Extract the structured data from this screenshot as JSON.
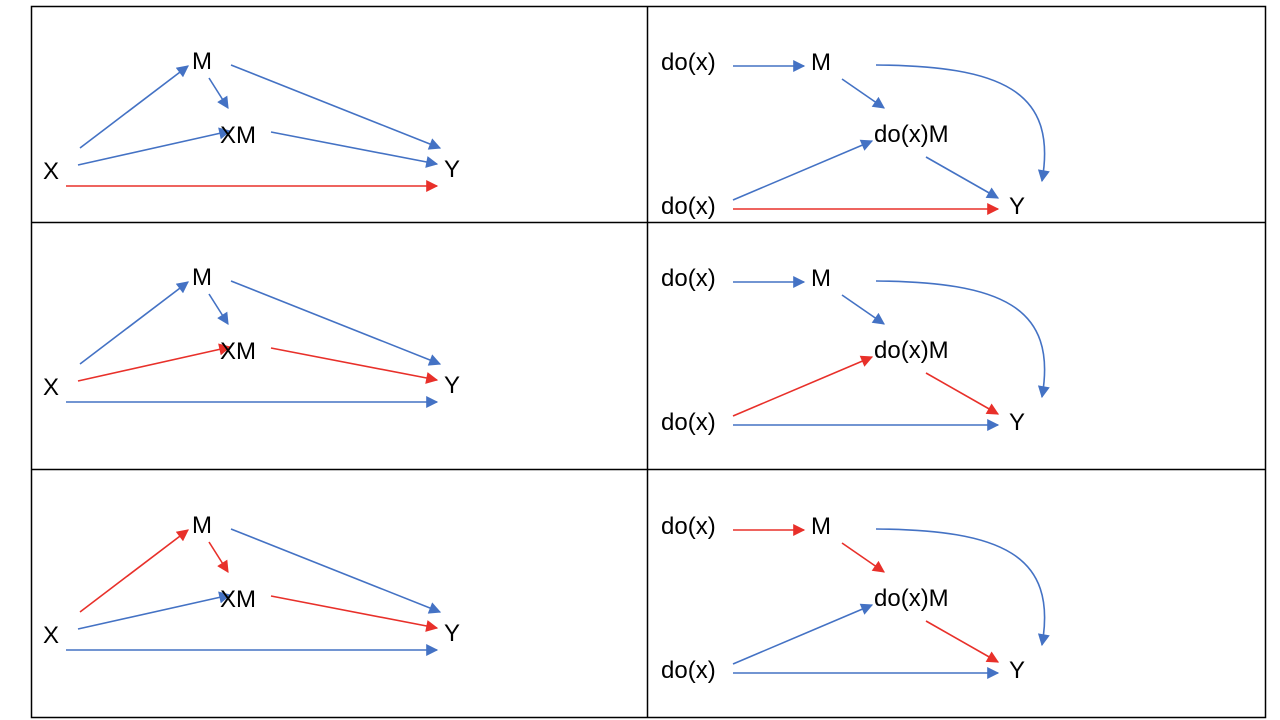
{
  "colors": {
    "blue": "#4472C4",
    "red": "#E8302A",
    "grid": "#000000"
  },
  "labels": {
    "x": "X",
    "m": "M",
    "xm": "XM",
    "y": "Y",
    "dox": "do(x)",
    "doxm": "do(x)M"
  },
  "panels": [
    {
      "row": 1,
      "side": "observational",
      "edges": [
        {
          "from": "X",
          "to": "M",
          "color": "blue"
        },
        {
          "from": "M",
          "to": "XM",
          "color": "blue"
        },
        {
          "from": "M",
          "to": "Y",
          "color": "blue"
        },
        {
          "from": "X",
          "to": "XM",
          "color": "blue"
        },
        {
          "from": "XM",
          "to": "Y",
          "color": "blue"
        },
        {
          "from": "X",
          "to": "Y",
          "color": "red"
        }
      ]
    },
    {
      "row": 1,
      "side": "interventional",
      "edges": [
        {
          "from": "do(x)",
          "to": "M",
          "color": "blue"
        },
        {
          "from": "M",
          "to": "do(x)M",
          "color": "blue"
        },
        {
          "from": "M",
          "to": "Y",
          "color": "blue"
        },
        {
          "from": "do(x)",
          "to": "do(x)M",
          "color": "blue"
        },
        {
          "from": "do(x)M",
          "to": "Y",
          "color": "blue"
        },
        {
          "from": "do(x)",
          "to": "Y",
          "color": "red"
        }
      ]
    },
    {
      "row": 2,
      "side": "observational",
      "edges": [
        {
          "from": "X",
          "to": "M",
          "color": "blue"
        },
        {
          "from": "M",
          "to": "XM",
          "color": "blue"
        },
        {
          "from": "M",
          "to": "Y",
          "color": "blue"
        },
        {
          "from": "X",
          "to": "XM",
          "color": "red"
        },
        {
          "from": "XM",
          "to": "Y",
          "color": "red"
        },
        {
          "from": "X",
          "to": "Y",
          "color": "blue"
        }
      ]
    },
    {
      "row": 2,
      "side": "interventional",
      "edges": [
        {
          "from": "do(x)",
          "to": "M",
          "color": "blue"
        },
        {
          "from": "M",
          "to": "do(x)M",
          "color": "blue"
        },
        {
          "from": "M",
          "to": "Y",
          "color": "blue"
        },
        {
          "from": "do(x)",
          "to": "do(x)M",
          "color": "red"
        },
        {
          "from": "do(x)M",
          "to": "Y",
          "color": "red"
        },
        {
          "from": "do(x)",
          "to": "Y",
          "color": "blue"
        }
      ]
    },
    {
      "row": 3,
      "side": "observational",
      "edges": [
        {
          "from": "X",
          "to": "M",
          "color": "red"
        },
        {
          "from": "M",
          "to": "XM",
          "color": "red"
        },
        {
          "from": "M",
          "to": "Y",
          "color": "blue"
        },
        {
          "from": "X",
          "to": "XM",
          "color": "blue"
        },
        {
          "from": "XM",
          "to": "Y",
          "color": "red"
        },
        {
          "from": "X",
          "to": "Y",
          "color": "blue"
        }
      ]
    },
    {
      "row": 3,
      "side": "interventional",
      "edges": [
        {
          "from": "do(x)",
          "to": "M",
          "color": "red"
        },
        {
          "from": "M",
          "to": "do(x)M",
          "color": "red"
        },
        {
          "from": "M",
          "to": "Y",
          "color": "blue"
        },
        {
          "from": "do(x)",
          "to": "do(x)M",
          "color": "blue"
        },
        {
          "from": "do(x)M",
          "to": "Y",
          "color": "red"
        },
        {
          "from": "do(x)",
          "to": "Y",
          "color": "blue"
        }
      ]
    }
  ]
}
